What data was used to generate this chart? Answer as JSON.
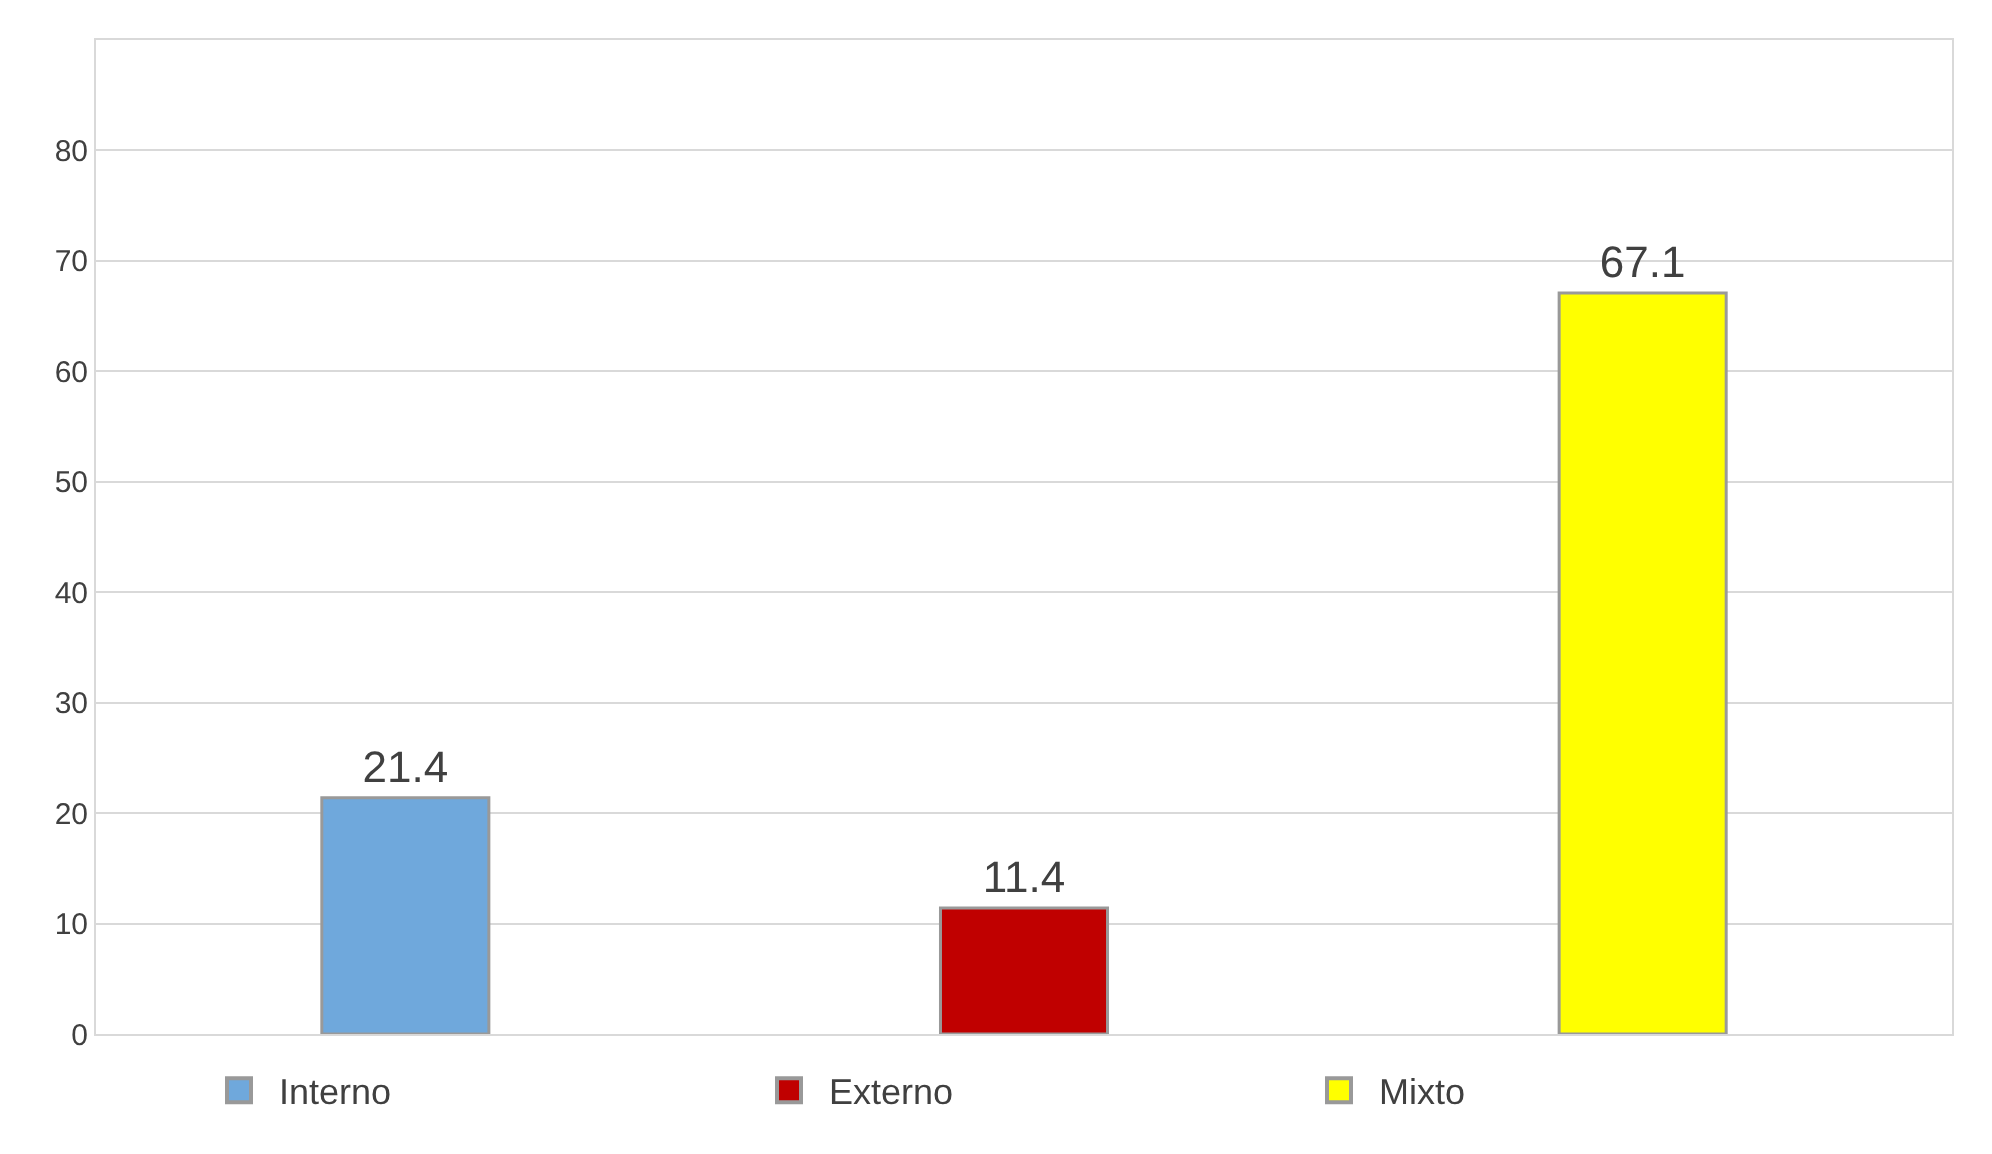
{
  "chart_data": {
    "type": "bar",
    "categories": [
      null,
      null,
      null
    ],
    "series": [
      {
        "name": "Interno",
        "color": "#6fa8dc",
        "values": [
          21.4,
          null,
          null
        ]
      },
      {
        "name": "Externo",
        "color": "#c00000",
        "values": [
          null,
          11.4,
          null
        ]
      },
      {
        "name": "Mixto",
        "color": "#ffff00",
        "values": [
          null,
          null,
          67.1
        ]
      }
    ],
    "ylim": [
      0,
      90
    ],
    "yticks": [
      0,
      10,
      20,
      30,
      40,
      50,
      60,
      70,
      80
    ],
    "grid": "y",
    "legend": "bottom",
    "data_labels": true
  }
}
